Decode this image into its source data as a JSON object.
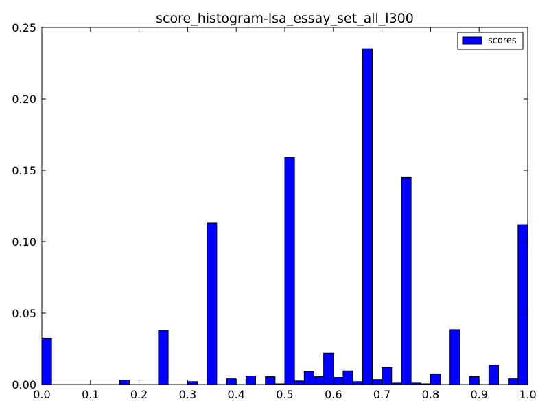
{
  "chart_data": {
    "type": "bar",
    "title": "score_histogram-lsa_essay_set_all_l300",
    "xlabel": "",
    "ylabel": "",
    "xlim": [
      0.0,
      1.0
    ],
    "ylim": [
      0.0,
      0.25
    ],
    "bin_width": 0.02,
    "x_ticks": [
      "0.0",
      "0.1",
      "0.2",
      "0.3",
      "0.4",
      "0.5",
      "0.6",
      "0.7",
      "0.8",
      "0.9",
      "1.0"
    ],
    "y_ticks": [
      "0.00",
      "0.05",
      "0.10",
      "0.15",
      "0.20",
      "0.25"
    ],
    "legend_position": "top-right",
    "grid": false,
    "series": [
      {
        "name": "scores",
        "color": "#0000ff",
        "edge_color": "#000000",
        "bins": [
          {
            "x": 0.0,
            "y": 0.0325
          },
          {
            "x": 0.16,
            "y": 0.003
          },
          {
            "x": 0.24,
            "y": 0.038
          },
          {
            "x": 0.3,
            "y": 0.002
          },
          {
            "x": 0.34,
            "y": 0.113
          },
          {
            "x": 0.38,
            "y": 0.004
          },
          {
            "x": 0.42,
            "y": 0.006
          },
          {
            "x": 0.46,
            "y": 0.0055
          },
          {
            "x": 0.48,
            "y": 0.0005
          },
          {
            "x": 0.5,
            "y": 0.159
          },
          {
            "x": 0.52,
            "y": 0.0025
          },
          {
            "x": 0.54,
            "y": 0.009
          },
          {
            "x": 0.56,
            "y": 0.0055
          },
          {
            "x": 0.58,
            "y": 0.022
          },
          {
            "x": 0.6,
            "y": 0.005
          },
          {
            "x": 0.62,
            "y": 0.0095
          },
          {
            "x": 0.64,
            "y": 0.002
          },
          {
            "x": 0.66,
            "y": 0.235
          },
          {
            "x": 0.68,
            "y": 0.0035
          },
          {
            "x": 0.7,
            "y": 0.012
          },
          {
            "x": 0.72,
            "y": 0.001
          },
          {
            "x": 0.74,
            "y": 0.145
          },
          {
            "x": 0.76,
            "y": 0.001
          },
          {
            "x": 0.78,
            "y": 0.0005
          },
          {
            "x": 0.8,
            "y": 0.0075
          },
          {
            "x": 0.84,
            "y": 0.0385
          },
          {
            "x": 0.88,
            "y": 0.0055
          },
          {
            "x": 0.92,
            "y": 0.0135
          },
          {
            "x": 0.96,
            "y": 0.004
          },
          {
            "x": 0.98,
            "y": 0.112
          }
        ]
      }
    ]
  }
}
